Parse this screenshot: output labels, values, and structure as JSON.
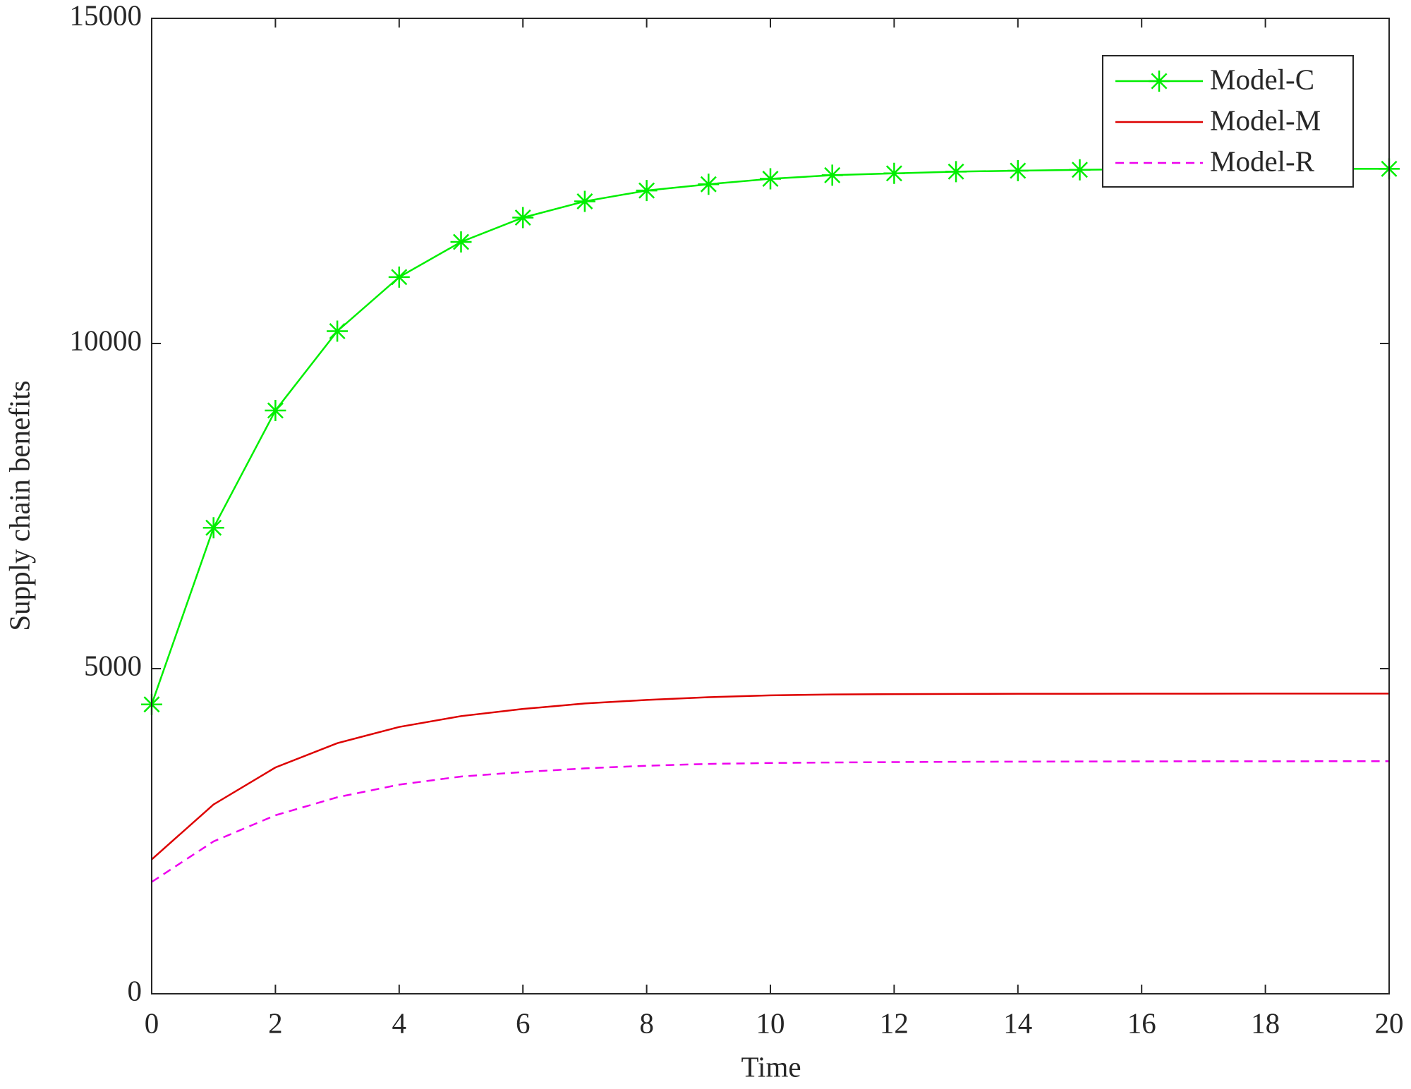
{
  "chart_data": {
    "type": "line",
    "x_label": "Time",
    "y_label": "Supply chain benefits",
    "x": [
      0,
      1,
      2,
      3,
      4,
      5,
      6,
      7,
      8,
      9,
      10,
      11,
      12,
      13,
      14,
      15,
      16,
      17,
      18,
      19,
      20
    ],
    "series": [
      {
        "name": "Model-C",
        "color": "#00ee00",
        "marker": "star",
        "linestyle": "solid",
        "values": [
          4450,
          7167,
          8970,
          10190,
          11021,
          11562,
          11936,
          12186,
          12352,
          12449,
          12532,
          12588,
          12616,
          12643,
          12657,
          12671,
          12680,
          12683,
          12685,
          12686,
          12686
        ]
      },
      {
        "name": "Model-M",
        "color": "#dd0000",
        "marker": "none",
        "linestyle": "solid",
        "values": [
          2066,
          2911,
          3480,
          3854,
          4103,
          4270,
          4380,
          4464,
          4519,
          4561,
          4589,
          4603,
          4608,
          4611,
          4613,
          4614,
          4615,
          4615,
          4616,
          4616,
          4616
        ]
      },
      {
        "name": "Model-R",
        "color": "#ee00ee",
        "marker": "none",
        "linestyle": "dashed",
        "values": [
          1719,
          2343,
          2745,
          3022,
          3216,
          3341,
          3410,
          3466,
          3507,
          3535,
          3549,
          3557,
          3563,
          3567,
          3570,
          3572,
          3574,
          3575,
          3575,
          3576,
          3576
        ]
      }
    ],
    "xlim": [
      0,
      20
    ],
    "xticks": [
      0,
      2,
      4,
      6,
      8,
      10,
      12,
      14,
      16,
      18,
      20
    ],
    "ylim": [
      0,
      15000
    ],
    "yticks": [
      0,
      5000,
      10000,
      15000
    ],
    "grid": false,
    "legend": "upper right"
  }
}
